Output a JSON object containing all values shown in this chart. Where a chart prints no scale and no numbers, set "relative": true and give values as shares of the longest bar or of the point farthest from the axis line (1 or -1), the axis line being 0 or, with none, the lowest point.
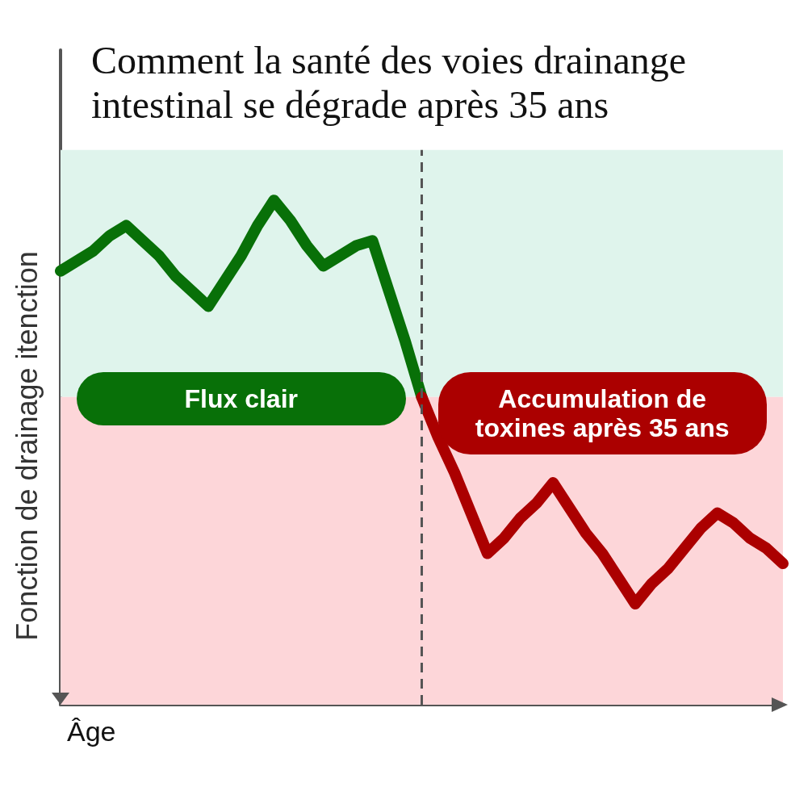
{
  "chart_data": {
    "type": "line",
    "title": "Comment la santé des voies drainange intestinal se dégrade après 35 ans",
    "xlabel": "Âge",
    "ylabel": "Fonction de drainage itenction",
    "relative": true,
    "categories": [
      null,
      null,
      null,
      null,
      null,
      null,
      null,
      null,
      null,
      null,
      null,
      null,
      null,
      null,
      null,
      null,
      null,
      null,
      null,
      null,
      null,
      null,
      null,
      null,
      null,
      null,
      null,
      null,
      null,
      null,
      null,
      null,
      null,
      null,
      null,
      null,
      null,
      null,
      null,
      null,
      null,
      null,
      null,
      null,
      null
    ],
    "series": [
      {
        "name": "Flux clair",
        "color": "#087008",
        "values": [
          0.86,
          0.88,
          0.9,
          0.93,
          0.95,
          0.92,
          0.89,
          0.85,
          0.82,
          0.79,
          0.84,
          0.89,
          0.95,
          1.0,
          0.96,
          0.91,
          0.87,
          0.89,
          0.91,
          0.92,
          0.82,
          0.72,
          0.61,
          null,
          null,
          null,
          null,
          null,
          null,
          null,
          null,
          null,
          null,
          null,
          null,
          null,
          null,
          null,
          null,
          null,
          null,
          null,
          null,
          null,
          null
        ]
      },
      {
        "name": "Accumulation de toxines après 35 ans",
        "color": "#ab0000",
        "values": [
          null,
          null,
          null,
          null,
          null,
          null,
          null,
          null,
          null,
          null,
          null,
          null,
          null,
          null,
          null,
          null,
          null,
          null,
          null,
          null,
          null,
          null,
          0.61,
          0.53,
          0.46,
          0.38,
          0.3,
          0.33,
          0.37,
          0.4,
          0.44,
          0.39,
          0.34,
          0.3,
          0.25,
          0.2,
          0.24,
          0.27,
          0.31,
          0.35,
          0.38,
          0.36,
          0.33,
          0.31,
          0.28
        ]
      }
    ],
    "bands": [
      {
        "axis": "y",
        "from": 0.61,
        "to": 1.1,
        "color": "#dff4ec"
      },
      {
        "axis": "y",
        "from": 0,
        "to": 0.61,
        "color": "#fdd6d9"
      }
    ]
  }
}
